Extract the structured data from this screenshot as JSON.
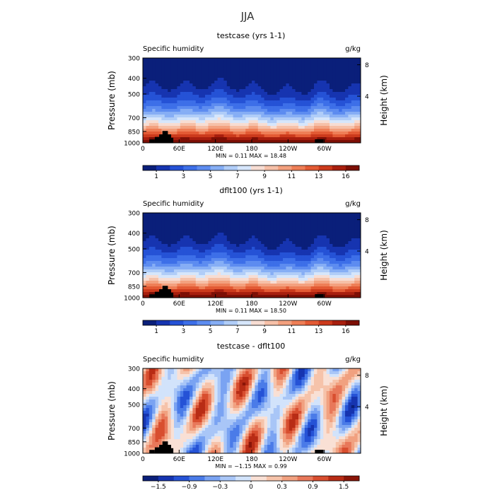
{
  "title": "JJA",
  "panels": [
    {
      "title": "testcase (yrs 1-1)",
      "left_label": "Specific humidity",
      "right_label": "g/kg",
      "stats": "MIN =    0.11   MAX =   18.48",
      "field": "full"
    },
    {
      "title": "dflt100 (yrs 1-1)",
      "left_label": "Specific humidity",
      "right_label": "g/kg",
      "stats": "MIN =    0.11   MAX =   18.50",
      "field": "full"
    },
    {
      "title": "testcase - dflt100",
      "left_label": "Specific humidity",
      "right_label": "g/kg",
      "stats": "MIN =   −1.15   MAX =    0.99",
      "field": "diff"
    }
  ],
  "axis": {
    "ylabel": "Pressure (mb)",
    "y2label": "Height (km)",
    "xticks": [
      "0",
      "60E",
      "120E",
      "180",
      "120W",
      "60W"
    ],
    "yticks": [
      "300",
      "400",
      "500",
      "700",
      "850",
      "1000"
    ],
    "y2ticks": [
      "8",
      "4"
    ]
  },
  "colorbars": {
    "full": {
      "labels": [
        "1",
        "3",
        "5",
        "7",
        "9",
        "11",
        "13",
        "16"
      ],
      "colors": [
        "#0a1f7a",
        "#1634b0",
        "#2552d6",
        "#3d6fe8",
        "#5d8cf0",
        "#86aef5",
        "#b0cdf8",
        "#d6e6fb",
        "#f7ddd3",
        "#f6c0a8",
        "#f3a07e",
        "#ee7e56",
        "#e35a34",
        "#cc3a1c",
        "#a81f0e",
        "#7d0f05"
      ]
    },
    "diff": {
      "labels": [
        "−1.5",
        "−0.9",
        "−0.3",
        "0",
        "0.3",
        "0.9",
        "1.5"
      ],
      "colors": [
        "#0a1f7a",
        "#1634b0",
        "#2552d6",
        "#4a7be8",
        "#7aa3f2",
        "#a9c6f7",
        "#d2e3fb",
        "#f9e0d5",
        "#f6c3aa",
        "#f1a180",
        "#e8785a",
        "#d84e2f",
        "#b82c15",
        "#8a1508"
      ]
    }
  },
  "chart_data": [
    {
      "type": "heatmap",
      "title": "testcase (yrs 1-1)",
      "variable": "Specific humidity",
      "units": "g/kg",
      "xlabel": "",
      "ylabel": "Pressure (mb)",
      "y2label": "Height (km)",
      "x_ticks": [
        "0",
        "60E",
        "120E",
        "180",
        "120W",
        "60W"
      ],
      "y_ticks_mb": [
        300,
        400,
        500,
        700,
        850,
        1000
      ],
      "y2_ticks_km": [
        8,
        4
      ],
      "contour_levels": [
        1,
        3,
        5,
        7,
        9,
        11,
        13,
        16
      ],
      "min": 0.11,
      "max": 18.48
    },
    {
      "type": "heatmap",
      "title": "dflt100 (yrs 1-1)",
      "variable": "Specific humidity",
      "units": "g/kg",
      "xlabel": "",
      "ylabel": "Pressure (mb)",
      "y2label": "Height (km)",
      "x_ticks": [
        "0",
        "60E",
        "120E",
        "180",
        "120W",
        "60W"
      ],
      "y_ticks_mb": [
        300,
        400,
        500,
        700,
        850,
        1000
      ],
      "y2_ticks_km": [
        8,
        4
      ],
      "contour_levels": [
        1,
        3,
        5,
        7,
        9,
        11,
        13,
        16
      ],
      "min": 0.11,
      "max": 18.5
    },
    {
      "type": "heatmap",
      "title": "testcase - dflt100",
      "variable": "Specific humidity",
      "units": "g/kg",
      "xlabel": "",
      "ylabel": "Pressure (mb)",
      "y2label": "Height (km)",
      "x_ticks": [
        "0",
        "60E",
        "120E",
        "180",
        "120W",
        "60W"
      ],
      "y_ticks_mb": [
        300,
        400,
        500,
        700,
        850,
        1000
      ],
      "y2_ticks_km": [
        8,
        4
      ],
      "contour_levels": [
        -1.5,
        -0.9,
        -0.3,
        0,
        0.3,
        0.9,
        1.5
      ],
      "min": -1.15,
      "max": 0.99
    }
  ]
}
